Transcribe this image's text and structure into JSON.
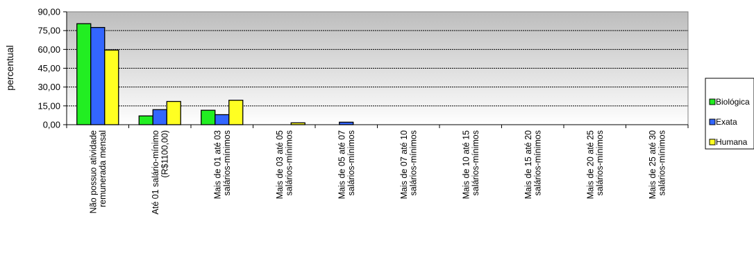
{
  "chart_data": {
    "type": "bar",
    "title": "",
    "xlabel": "",
    "ylabel": "percentual",
    "ylim": [
      0,
      90
    ],
    "yticks": [
      "0,00",
      "15,00",
      "30,00",
      "45,00",
      "60,00",
      "75,00",
      "90,00"
    ],
    "grid": true,
    "legend_position": "right",
    "categories": [
      [
        "Não possuo atividade",
        "remunerada mensal"
      ],
      [
        "Até 01 salário-mínimo",
        "(R$1100,00)"
      ],
      [
        "Mais de 01 até 03",
        "salários-mínimos"
      ],
      [
        "Mais de 03 até 05",
        "salários-mínimos"
      ],
      [
        "Mais de 05 até 07",
        "salários-mínimos"
      ],
      [
        "Mais de 07 até 10",
        "salários-mínimos"
      ],
      [
        "Mais de 10 até 15",
        "salários-mínimos"
      ],
      [
        "Mais de 15 até 20",
        "salários-mínimos"
      ],
      [
        "Mais de 20 até 25",
        "salários-mínimos"
      ],
      [
        "Mais de 25 até 30",
        "salários-mínimos"
      ]
    ],
    "series": [
      {
        "name": "Biológica",
        "color": "#22ee22",
        "values": [
          80.5,
          7.0,
          11.5,
          0,
          0,
          0,
          0,
          0,
          0,
          0
        ]
      },
      {
        "name": "Exata",
        "color": "#3366ff",
        "values": [
          77.5,
          12.0,
          8.0,
          0,
          2.0,
          0,
          0,
          0,
          0,
          0
        ]
      },
      {
        "name": "Humana",
        "color": "#ffff22",
        "values": [
          59.5,
          18.5,
          19.5,
          1.5,
          0,
          0,
          0,
          0,
          0,
          0
        ]
      }
    ]
  }
}
